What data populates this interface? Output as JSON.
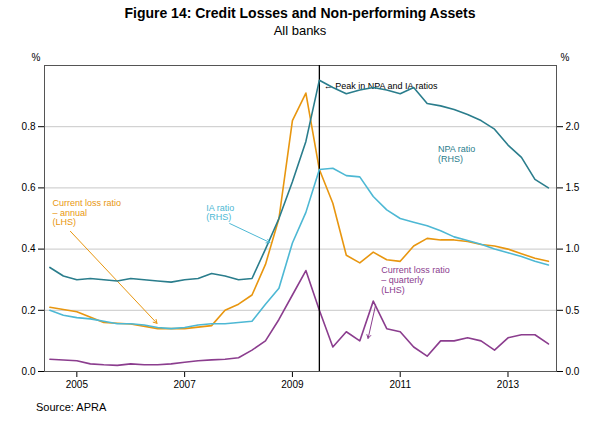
{
  "chart_data": {
    "type": "line",
    "title": "Figure 14: Credit Losses and Non-performing Assets",
    "subtitle": "All banks",
    "source": "Source:    APRA",
    "ylabel": "%",
    "y2label": "%",
    "xlim": [
      2004.4,
      2013.9
    ],
    "xticks": [
      2005,
      2007,
      2009,
      2011,
      2013
    ],
    "ylim": [
      0.0,
      1.0
    ],
    "yticks": [
      {
        "value": 0.0,
        "label": "0.0"
      },
      0.2,
      0.4,
      0.6,
      0.8
    ],
    "y2lim": [
      0.0,
      2.5
    ],
    "y2ticks": [
      {
        "value": 0.0,
        "label": "0.0"
      },
      0.5,
      {
        "value": 1.0,
        "label": "1.0"
      },
      1.5,
      {
        "value": 2.0,
        "label": "2.0"
      }
    ],
    "grid": true,
    "series": [
      {
        "axis": "y2",
        "color": "#2a7d8c",
        "x": [
          2004.5,
          2004.75,
          2005.0,
          2005.25,
          2005.5,
          2005.75,
          2006.0,
          2006.25,
          2006.5,
          2006.75,
          2007.0,
          2007.25,
          2007.5,
          2007.75,
          2008.0,
          2008.25,
          2008.5,
          2008.75,
          2009.0,
          2009.25,
          2009.5,
          2009.75,
          2010.0,
          2010.25,
          2010.5,
          2010.75,
          2011.0,
          2011.25,
          2011.5,
          2011.75,
          2012.0,
          2012.25,
          2012.5,
          2012.75,
          2013.0,
          2013.25,
          2013.5,
          2013.75
        ],
        "values": [
          0.85,
          0.78,
          0.75,
          0.76,
          0.75,
          0.74,
          0.76,
          0.75,
          0.74,
          0.73,
          0.75,
          0.76,
          0.8,
          0.78,
          0.75,
          0.76,
          1.0,
          1.25,
          1.55,
          1.88,
          2.38,
          2.32,
          2.27,
          2.3,
          2.32,
          2.3,
          2.27,
          2.32,
          2.19,
          2.17,
          2.14,
          2.1,
          2.05,
          1.98,
          1.85,
          1.75,
          1.57,
          1.5
        ]
      },
      {
        "axis": "y2",
        "color": "#4db8d4",
        "x": [
          2004.5,
          2004.75,
          2005.0,
          2005.25,
          2005.5,
          2005.75,
          2006.0,
          2006.25,
          2006.5,
          2006.75,
          2007.0,
          2007.25,
          2007.5,
          2007.75,
          2008.0,
          2008.25,
          2008.5,
          2008.75,
          2009.0,
          2009.25,
          2009.5,
          2009.75,
          2010.0,
          2010.25,
          2010.5,
          2010.75,
          2011.0,
          2011.25,
          2011.5,
          2011.75,
          2012.0,
          2012.25,
          2012.5,
          2012.75,
          2013.0,
          2013.25,
          2013.5,
          2013.75
        ],
        "values": [
          0.5,
          0.46,
          0.44,
          0.43,
          0.41,
          0.39,
          0.39,
          0.38,
          0.36,
          0.35,
          0.36,
          0.38,
          0.39,
          0.39,
          0.4,
          0.41,
          0.55,
          0.68,
          1.05,
          1.3,
          1.65,
          1.66,
          1.6,
          1.59,
          1.43,
          1.32,
          1.25,
          1.22,
          1.19,
          1.15,
          1.1,
          1.07,
          1.04,
          1.0,
          0.97,
          0.94,
          0.9,
          0.87
        ]
      },
      {
        "axis": "y",
        "color": "#e8960f",
        "x": [
          2004.5,
          2005.0,
          2005.5,
          2006.0,
          2006.5,
          2007.0,
          2007.5,
          2007.75,
          2008.0,
          2008.25,
          2008.5,
          2008.75,
          2009.0,
          2009.25,
          2009.5,
          2009.75,
          2010.0,
          2010.25,
          2010.5,
          2010.75,
          2011.0,
          2011.25,
          2011.5,
          2011.75,
          2012.0,
          2012.25,
          2012.5,
          2012.75,
          2013.0,
          2013.25,
          2013.5,
          2013.75
        ],
        "values": [
          0.21,
          0.195,
          0.16,
          0.155,
          0.14,
          0.14,
          0.15,
          0.2,
          0.22,
          0.25,
          0.35,
          0.5,
          0.82,
          0.91,
          0.66,
          0.55,
          0.38,
          0.355,
          0.39,
          0.365,
          0.36,
          0.41,
          0.435,
          0.43,
          0.43,
          0.425,
          0.415,
          0.41,
          0.4,
          0.385,
          0.37,
          0.36
        ]
      },
      {
        "axis": "y",
        "color": "#8b3d8e",
        "x": [
          2004.5,
          2005.0,
          2005.25,
          2005.5,
          2005.75,
          2006.0,
          2006.25,
          2006.5,
          2006.75,
          2007.0,
          2007.25,
          2007.5,
          2007.75,
          2008.0,
          2008.25,
          2008.5,
          2008.75,
          2009.0,
          2009.25,
          2009.5,
          2009.75,
          2010.0,
          2010.25,
          2010.5,
          2010.75,
          2011.0,
          2011.25,
          2011.5,
          2011.75,
          2012.0,
          2012.25,
          2012.5,
          2012.75,
          2013.0,
          2013.25,
          2013.5,
          2013.75
        ],
        "values": [
          0.04,
          0.035,
          0.025,
          0.022,
          0.02,
          0.025,
          0.022,
          0.022,
          0.025,
          0.03,
          0.035,
          0.038,
          0.04,
          0.045,
          0.07,
          0.1,
          0.17,
          0.25,
          0.33,
          0.2,
          0.08,
          0.13,
          0.1,
          0.23,
          0.14,
          0.13,
          0.08,
          0.05,
          0.1,
          0.1,
          0.11,
          0.1,
          0.07,
          0.11,
          0.12,
          0.12,
          0.09
        ]
      }
    ],
    "vlines": [
      {
        "x": 2009.5,
        "color": "black"
      }
    ],
    "annotations": [
      {
        "text": "← Peak in NPA and IA ratios",
        "axis": "y",
        "x": 2009.58,
        "y": 0.935,
        "color": "black"
      },
      {
        "text": "Current loss ratio\n– annual\n(LHS)",
        "axis": "y",
        "x": 2004.55,
        "y": 0.52,
        "arrow_x": 2006.5,
        "arrow_y": 0.155,
        "color": "#e8960f"
      },
      {
        "text": "IA ratio\n(RHS)",
        "axis": "y2",
        "x": 2007.4,
        "y": 1.3,
        "arrow_x": 2008.6,
        "arrow_y": 1.05,
        "color": "#4db8d4"
      },
      {
        "text": "NPA ratio\n(RHS)",
        "axis": "y2",
        "x": 2011.7,
        "y": 1.78,
        "color": "#2a7d8c"
      },
      {
        "text": "Current loss ratio\n– quarterly\n(LHS)",
        "axis": "y",
        "x": 2010.65,
        "y": 0.3,
        "arrow_x": 2010.4,
        "arrow_y": 0.105,
        "color": "#8b3d8e"
      }
    ]
  }
}
